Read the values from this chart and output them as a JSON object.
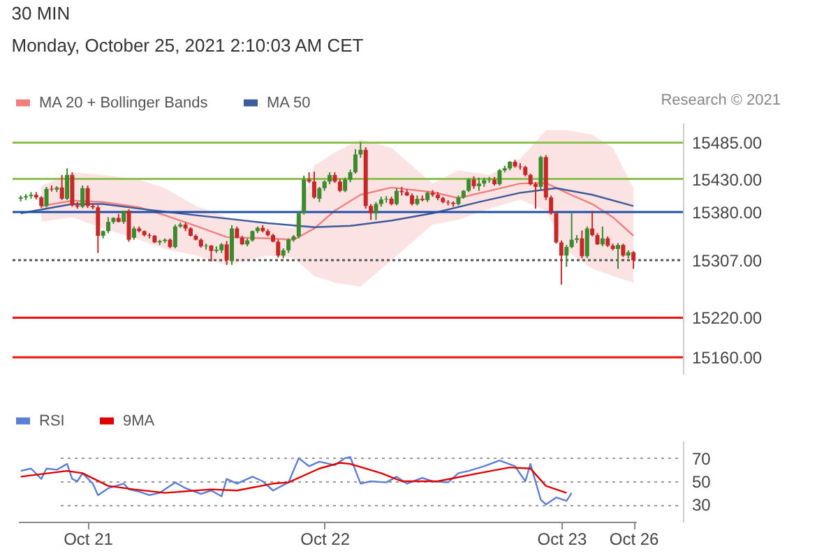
{
  "chart_data": [
    {
      "type": "candlestick",
      "title": "30 MIN",
      "subtitle": "Monday, October 25, 2021 2:10:03 AM CET",
      "annotations": [
        "Research © 2021"
      ],
      "categories": [
        null,
        null,
        null,
        null,
        null,
        null,
        null,
        null,
        null,
        null,
        null,
        null,
        null,
        "Oct 21",
        null,
        null,
        null,
        null,
        null,
        null,
        null,
        null,
        null,
        null,
        null,
        null,
        null,
        null,
        null,
        null,
        null,
        null,
        null,
        null,
        null,
        null,
        null,
        null,
        null,
        null,
        null,
        null,
        null,
        null,
        null,
        null,
        null,
        null,
        null,
        null,
        null,
        null,
        null,
        null,
        null,
        null,
        null,
        null,
        null,
        "Oct 22",
        null,
        null,
        null,
        null,
        null,
        null,
        null,
        null,
        null,
        null,
        null,
        null,
        null,
        null,
        null,
        null,
        null,
        null,
        null,
        null,
        null,
        null,
        null,
        null,
        null,
        null,
        null,
        null,
        null,
        null,
        null,
        null,
        null,
        null,
        null,
        null,
        null,
        null,
        null,
        null,
        null,
        null,
        null,
        null,
        null,
        "Oct 23",
        null,
        null,
        null,
        null,
        null,
        null,
        null,
        null,
        null,
        null,
        null,
        null,
        null,
        "Oct 26"
      ],
      "ohlc": [
        [
          15400,
          15405,
          15396,
          15402
        ],
        [
          15402,
          15407,
          15398,
          15404
        ],
        [
          15404,
          15410,
          15400,
          15406
        ],
        [
          15406,
          15410,
          15399,
          15402
        ],
        [
          15402,
          15404,
          15386,
          15389
        ],
        [
          15389,
          15418,
          15387,
          15415
        ],
        [
          15415,
          15420,
          15411,
          15414
        ],
        [
          15414,
          15419,
          15410,
          15417
        ],
        [
          15417,
          15436,
          15398,
          15400
        ],
        [
          15400,
          15446,
          15398,
          15436
        ],
        [
          15436,
          15440,
          15388,
          15390
        ],
        [
          15390,
          15395,
          15385,
          15388
        ],
        [
          15388,
          15420,
          15386,
          15416
        ],
        [
          15416,
          15420,
          15386,
          15389
        ],
        [
          15389,
          15392,
          15384,
          15387
        ],
        [
          15387,
          15390,
          15318,
          15344
        ],
        [
          15344,
          15352,
          15340,
          15351
        ],
        [
          15351,
          15372,
          15348,
          15365
        ],
        [
          15365,
          15372,
          15362,
          15371
        ],
        [
          15371,
          15377,
          15364,
          15365
        ],
        [
          15365,
          15382,
          15362,
          15382
        ],
        [
          15382,
          15384,
          15335,
          15338
        ],
        [
          15341,
          15358,
          15338,
          15355
        ],
        [
          15355,
          15358,
          15349,
          15351
        ],
        [
          15351,
          15352,
          15343,
          15345
        ],
        [
          15345,
          15348,
          15340,
          15344
        ],
        [
          15344,
          15345,
          15333,
          15334
        ],
        [
          15334,
          15338,
          15330,
          15336
        ],
        [
          15336,
          15340,
          15333,
          15338
        ],
        [
          15338,
          15340,
          15325,
          15327
        ],
        [
          15327,
          15361,
          15325,
          15358
        ],
        [
          15358,
          15364,
          15356,
          15361
        ],
        [
          15361,
          15364,
          15351,
          15355
        ],
        [
          15355,
          15357,
          15343,
          15344
        ],
        [
          15344,
          15346,
          15337,
          15338
        ],
        [
          15338,
          15340,
          15326,
          15328
        ],
        [
          15328,
          15332,
          15323,
          15329
        ],
        [
          15329,
          15330,
          15305,
          15321
        ],
        [
          15321,
          15328,
          15318,
          15323
        ],
        [
          15322,
          15333,
          15318,
          15331
        ],
        [
          15331,
          15336,
          15300,
          15307
        ],
        [
          15306,
          15360,
          15300,
          15355
        ],
        [
          15355,
          15358,
          15340,
          15341
        ],
        [
          15341,
          15344,
          15330,
          15331
        ],
        [
          15331,
          15340,
          15328,
          15337
        ],
        [
          15337,
          15352,
          15335,
          15351
        ],
        [
          15351,
          15358,
          15348,
          15356
        ],
        [
          15356,
          15360,
          15349,
          15351
        ],
        [
          15351,
          15354,
          15343,
          15345
        ],
        [
          15345,
          15347,
          15334,
          15335
        ],
        [
          15335,
          15338,
          15311,
          15314
        ],
        [
          15314,
          15325,
          15310,
          15322
        ],
        [
          15322,
          15340,
          15318,
          15338
        ],
        [
          15338,
          15345,
          15335,
          15343
        ],
        [
          15343,
          15381,
          15340,
          15378
        ],
        [
          15378,
          15435,
          15376,
          15429
        ],
        [
          15429,
          15440,
          15424,
          15426
        ],
        [
          15426,
          15441,
          15400,
          15402
        ],
        [
          15400,
          15418,
          15395,
          15416
        ],
        [
          15416,
          15428,
          15412,
          15426
        ],
        [
          15426,
          15440,
          15422,
          15436
        ],
        [
          15436,
          15440,
          15424,
          15426
        ],
        [
          15426,
          15430,
          15410,
          15412
        ],
        [
          15412,
          15432,
          15410,
          15429
        ],
        [
          15429,
          15444,
          15425,
          15440
        ],
        [
          15440,
          15475,
          15438,
          15467
        ],
        [
          15467,
          15486,
          15462,
          15474
        ],
        [
          15474,
          15478,
          15385,
          15389
        ],
        [
          15389,
          15392,
          15368,
          15378
        ],
        [
          15378,
          15395,
          15368,
          15392
        ],
        [
          15392,
          15403,
          15388,
          15399
        ],
        [
          15399,
          15404,
          15394,
          15400
        ],
        [
          15400,
          15403,
          15390,
          15392
        ],
        [
          15392,
          15416,
          15390,
          15412
        ],
        [
          15412,
          15418,
          15405,
          15410
        ],
        [
          15410,
          15414,
          15404,
          15405
        ],
        [
          15405,
          15408,
          15390,
          15392
        ],
        [
          15392,
          15405,
          15390,
          15400
        ],
        [
          15400,
          15405,
          15396,
          15398
        ],
        [
          15398,
          15411,
          15395,
          15409
        ],
        [
          15409,
          15413,
          15403,
          15406
        ],
        [
          15406,
          15410,
          15398,
          15401
        ],
        [
          15401,
          15403,
          15393,
          15395
        ],
        [
          15395,
          15398,
          15390,
          15394
        ],
        [
          15394,
          15396,
          15388,
          15392
        ],
        [
          15392,
          15405,
          15390,
          15402
        ],
        [
          15402,
          15413,
          15400,
          15412
        ],
        [
          15412,
          15431,
          15410,
          15429
        ],
        [
          15429,
          15434,
          15415,
          15419
        ],
        [
          15419,
          15432,
          15412,
          15423
        ],
        [
          15423,
          15432,
          15418,
          15428
        ],
        [
          15428,
          15433,
          15424,
          15429
        ],
        [
          15429,
          15433,
          15420,
          15422
        ],
        [
          15422,
          15445,
          15420,
          15443
        ],
        [
          15443,
          15450,
          15440,
          15446
        ],
        [
          15446,
          15457,
          15443,
          15456
        ],
        [
          15456,
          15459,
          15447,
          15449
        ],
        [
          15449,
          15454,
          15444,
          15448
        ],
        [
          15448,
          15450,
          15434,
          15436
        ],
        [
          15436,
          15438,
          15420,
          15422
        ],
        [
          15422,
          15425,
          15385,
          15418
        ],
        [
          15418,
          15465,
          15414,
          15463
        ],
        [
          15463,
          15466,
          15398,
          15402
        ],
        [
          15402,
          15405,
          15376,
          15378
        ],
        [
          15378,
          15380,
          15332,
          15334
        ],
        [
          15334,
          15337,
          15270,
          15314
        ],
        [
          15314,
          15330,
          15297,
          15327
        ],
        [
          15327,
          15378,
          15325,
          15338
        ],
        [
          15338,
          15345,
          15333,
          15340
        ],
        [
          15340,
          15352,
          15310,
          15313
        ],
        [
          15313,
          15358,
          15310,
          15355
        ],
        [
          15355,
          15382,
          15343,
          15345
        ],
        [
          15345,
          15348,
          15330,
          15331
        ],
        [
          15331,
          15358,
          15328,
          15340
        ],
        [
          15340,
          15343,
          15327,
          15329
        ],
        [
          15329,
          15332,
          15322,
          15324
        ],
        [
          15324,
          15333,
          15294,
          15330
        ],
        [
          15330,
          15332,
          15312,
          15314
        ],
        [
          15314,
          15322,
          15310,
          15319
        ],
        [
          15319,
          15321,
          15294,
          15307
        ]
      ],
      "series": [
        {
          "name": "MA 20 + Bollinger Bands",
          "type": "line",
          "color": "#f08080",
          "values": [
            null,
            null,
            null,
            null,
            15389,
            null,
            null,
            null,
            null,
            null,
            15397,
            null,
            null,
            null,
            null,
            null,
            15395,
            null,
            null,
            null,
            null,
            null,
            null,
            15387,
            null,
            null,
            null,
            null,
            15375,
            null,
            null,
            null,
            null,
            null,
            15359,
            null,
            null,
            null,
            null,
            null,
            15342,
            null,
            null,
            null,
            null,
            null,
            null,
            null,
            15340,
            null,
            null,
            null,
            null,
            15338,
            null,
            null,
            null,
            15355,
            null,
            null,
            null,
            15382,
            null,
            null,
            null,
            null,
            15406,
            null,
            null,
            null,
            null,
            null,
            15417,
            null,
            null,
            null,
            null,
            null,
            null,
            null,
            15410,
            null,
            null,
            null,
            null,
            15401,
            null,
            null,
            null,
            null,
            null,
            15412,
            null,
            null,
            null,
            null,
            null,
            15423,
            null,
            null,
            null,
            null,
            15424,
            null,
            null,
            null,
            15409,
            null,
            null,
            null,
            null,
            15392,
            null,
            null,
            null,
            15372,
            null,
            null,
            null,
            15344
          ],
          "upper": [
            null,
            null,
            null,
            null,
            15419,
            null,
            null,
            null,
            null,
            null,
            15440,
            null,
            null,
            null,
            null,
            null,
            15436,
            null,
            null,
            null,
            null,
            null,
            null,
            15429,
            null,
            null,
            null,
            null,
            15416,
            null,
            null,
            null,
            null,
            null,
            15389,
            null,
            null,
            null,
            null,
            null,
            15372,
            null,
            null,
            null,
            null,
            null,
            null,
            null,
            15361,
            null,
            null,
            null,
            null,
            15355,
            null,
            null,
            null,
            15450,
            null,
            null,
            null,
            15470,
            null,
            null,
            null,
            null,
            15490,
            null,
            null,
            null,
            null,
            null,
            15477,
            null,
            null,
            null,
            null,
            null,
            null,
            null,
            15423,
            null,
            null,
            null,
            null,
            15443,
            null,
            null,
            null,
            null,
            null,
            15436,
            null,
            null,
            null,
            null,
            null,
            15460,
            null,
            null,
            null,
            null,
            15504,
            null,
            null,
            null,
            15504,
            null,
            null,
            null,
            null,
            15497,
            null,
            null,
            null,
            15477,
            null,
            null,
            null,
            15416
          ],
          "lower": [
            null,
            null,
            null,
            null,
            15365,
            null,
            null,
            null,
            null,
            null,
            15372,
            null,
            null,
            null,
            null,
            null,
            15355,
            null,
            null,
            null,
            null,
            null,
            null,
            15338,
            null,
            null,
            null,
            null,
            15324,
            null,
            null,
            null,
            null,
            null,
            15314,
            null,
            null,
            null,
            null,
            null,
            15300,
            null,
            null,
            null,
            null,
            null,
            null,
            null,
            15314,
            null,
            null,
            null,
            null,
            15311,
            null,
            null,
            null,
            15283,
            null,
            null,
            null,
            15273,
            null,
            null,
            null,
            null,
            15267,
            null,
            null,
            null,
            null,
            null,
            15307,
            null,
            null,
            null,
            null,
            null,
            null,
            null,
            15361,
            null,
            null,
            null,
            null,
            15368,
            null,
            null,
            null,
            null,
            null,
            15385,
            null,
            null,
            null,
            null,
            null,
            15399,
            null,
            null,
            null,
            null,
            15382,
            null,
            null,
            null,
            15321,
            null,
            null,
            null,
            null,
            15294,
            null,
            null,
            null,
            15283,
            null,
            null,
            null,
            15273
          ]
        },
        {
          "name": "MA 50",
          "type": "line",
          "color": "#3d5a99",
          "values": [
            15378,
            null,
            null,
            null,
            null,
            null,
            null,
            null,
            null,
            null,
            15392,
            null,
            null,
            null,
            null,
            null,
            15392,
            null,
            null,
            null,
            null,
            null,
            null,
            15385,
            null,
            null,
            null,
            null,
            null,
            null,
            null,
            null,
            null,
            null,
            15375,
            null,
            null,
            null,
            null,
            null,
            15370,
            null,
            null,
            null,
            null,
            null,
            null,
            null,
            15363,
            null,
            null,
            null,
            null,
            null,
            null,
            null,
            null,
            15357,
            null,
            null,
            null,
            null,
            null,
            null,
            15359,
            null,
            null,
            null,
            null,
            null,
            null,
            null,
            15367,
            null,
            null,
            null,
            null,
            null,
            null,
            null,
            15378,
            null,
            null,
            null,
            null,
            null,
            null,
            null,
            null,
            15395,
            null,
            null,
            null,
            null,
            null,
            null,
            null,
            15409,
            null,
            null,
            null,
            null,
            null,
            null,
            15416,
            null,
            null,
            null,
            null,
            null,
            null,
            15406,
            null,
            null,
            null,
            null,
            null,
            null,
            null,
            15389
          ]
        }
      ],
      "ref_lines": [
        {
          "axis": "y",
          "value": 15485,
          "color": "#8cc152",
          "line_style": "solid"
        },
        {
          "axis": "y",
          "value": 15430,
          "color": "#8cc152",
          "line_style": "solid"
        },
        {
          "axis": "y",
          "value": 15380,
          "color": "#1f4fa8",
          "line_style": "solid"
        },
        {
          "axis": "y",
          "value": 15307,
          "color": "#555555",
          "line_style": "dotted"
        },
        {
          "axis": "y",
          "value": 15220,
          "color": "#ee1111",
          "line_style": "solid"
        },
        {
          "axis": "y",
          "value": 15160,
          "color": "#ee1111",
          "line_style": "solid"
        }
      ],
      "ylim": [
        15135,
        15515
      ],
      "yticks": [
        {
          "value": 15485,
          "label": "15485.00"
        },
        {
          "value": 15430,
          "label": "15430.00"
        },
        {
          "value": 15380,
          "label": "15380.00"
        },
        {
          "value": 15307,
          "label": "15307.00"
        },
        {
          "value": 15220,
          "label": "15220.00"
        },
        {
          "value": 15160,
          "label": "15160.00"
        }
      ],
      "tick_labels": "y",
      "legend": "top left",
      "grid": false
    },
    {
      "type": "line",
      "series": [
        {
          "name": "RSI",
          "color": "#5b7fd6",
          "values": [
            59,
            null,
            61,
            null,
            52,
            61,
            null,
            60,
            null,
            65,
            52,
            50,
            57,
            null,
            48,
            38,
            null,
            44,
            null,
            null,
            48,
            43,
            null,
            41,
            null,
            38,
            null,
            40,
            null,
            null,
            49,
            null,
            44,
            null,
            null,
            39,
            null,
            42,
            null,
            37,
            52,
            null,
            48,
            null,
            null,
            54,
            null,
            50,
            null,
            42,
            null,
            null,
            49,
            null,
            70,
            null,
            63,
            null,
            67,
            null,
            null,
            64,
            null,
            70,
            71,
            null,
            48,
            null,
            50,
            null,
            null,
            49,
            null,
            54,
            null,
            48,
            null,
            null,
            53,
            null,
            50,
            null,
            null,
            49,
            null,
            57,
            null,
            59,
            null,
            null,
            63,
            null,
            null,
            68,
            null,
            null,
            63,
            null,
            50,
            65,
            null,
            34,
            30,
            null,
            36,
            null,
            33,
            40,
            null,
            null,
            null,
            null,
            null,
            null,
            null,
            null,
            null,
            null,
            null,
            null
          ]
        },
        {
          "name": "9MA",
          "color": "#e00000",
          "values": [
            54,
            null,
            null,
            null,
            null,
            null,
            null,
            null,
            null,
            59,
            null,
            null,
            57,
            null,
            null,
            null,
            null,
            46,
            null,
            null,
            null,
            null,
            43,
            null,
            null,
            null,
            null,
            null,
            40,
            null,
            null,
            null,
            null,
            null,
            null,
            null,
            null,
            43,
            null,
            null,
            null,
            null,
            42,
            null,
            null,
            null,
            null,
            null,
            null,
            48,
            null,
            null,
            49,
            null,
            null,
            null,
            null,
            null,
            61,
            null,
            null,
            null,
            66,
            null,
            65,
            null,
            null,
            null,
            null,
            null,
            57,
            null,
            null,
            null,
            50,
            null,
            null,
            null,
            null,
            null,
            null,
            50,
            null,
            null,
            null,
            null,
            null,
            null,
            null,
            57,
            null,
            null,
            null,
            null,
            null,
            62,
            null,
            null,
            null,
            61,
            null,
            null,
            46,
            null,
            null,
            null,
            40,
            null,
            null,
            null,
            null,
            null,
            null,
            null,
            null,
            null,
            null,
            null,
            null,
            null
          ]
        }
      ],
      "ylim": [
        15,
        85
      ],
      "yticks": [
        30,
        50,
        70
      ],
      "legend": "top left",
      "grid": "y",
      "line_style": "solid"
    }
  ]
}
